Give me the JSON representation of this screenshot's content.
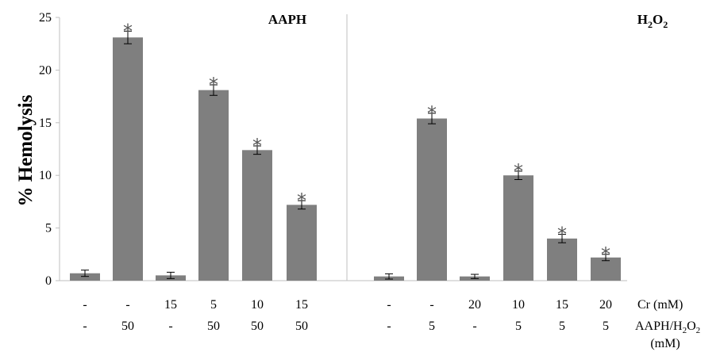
{
  "chart_data": {
    "type": "bar",
    "ylabel": "% Hemolysis",
    "ylim": [
      0,
      25
    ],
    "yticks": [
      "0",
      "5",
      "10",
      "15",
      "20",
      "25"
    ],
    "grid": false,
    "bar_color": "#7f7f7f",
    "panels": [
      {
        "title": "AAPH",
        "cr_mM": [
          "-",
          "-",
          "15",
          "5",
          "10",
          "15"
        ],
        "oxidant_mM": [
          "-",
          "50",
          "-",
          "50",
          "50",
          "50"
        ],
        "values": [
          0.7,
          23.1,
          0.5,
          18.1,
          12.4,
          7.2
        ],
        "errors": [
          0.3,
          0.6,
          0.3,
          0.5,
          0.4,
          0.4
        ],
        "significant": [
          false,
          true,
          false,
          true,
          true,
          true
        ]
      },
      {
        "title": "H2O2",
        "cr_mM": [
          "-",
          "-",
          "20",
          "10",
          "15",
          "20"
        ],
        "oxidant_mM": [
          "-",
          "5",
          "-",
          "5",
          "5",
          "5"
        ],
        "values": [
          0.4,
          15.4,
          0.4,
          10.0,
          4.0,
          2.2
        ],
        "errors": [
          0.25,
          0.5,
          0.2,
          0.4,
          0.4,
          0.3
        ],
        "significant": [
          false,
          true,
          false,
          true,
          true,
          true
        ]
      }
    ],
    "row_labels": {
      "cr": "Cr (mM)",
      "oxidant_line1": "AAPH/H",
      "oxidant_sub": "2",
      "oxidant_O": "O",
      "oxidant_sub2": "2",
      "oxidant_line2": "(mM)"
    },
    "significance_marker": "*"
  }
}
